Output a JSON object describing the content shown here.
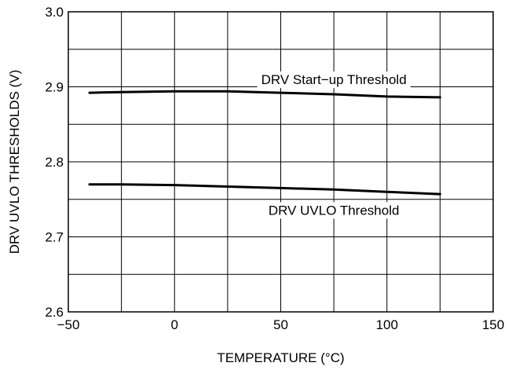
{
  "chart_data": {
    "type": "line",
    "title": "",
    "xlabel": "TEMPERATURE (°C)",
    "ylabel": "DRV UVLO THRESHOLDS (V)",
    "xlim": [
      -50,
      150
    ],
    "ylim": [
      2.6,
      3.0
    ],
    "x_ticks": [
      -50,
      0,
      50,
      100,
      150
    ],
    "x_tick_labels": [
      "−50",
      "0",
      "50",
      "100",
      "150"
    ],
    "y_ticks": [
      2.6,
      2.7,
      2.8,
      2.9,
      3.0
    ],
    "y_tick_labels": [
      "2.6",
      "2.7",
      "2.8",
      "2.9",
      "3.0"
    ],
    "x_minor_step": 25,
    "y_minor_step": 0.05,
    "grid": true,
    "legend": "none",
    "series": [
      {
        "name": "DRV Start−up Threshold",
        "x": [
          -40,
          -25,
          0,
          25,
          50,
          75,
          100,
          125
        ],
        "y": [
          2.892,
          2.893,
          2.894,
          2.894,
          2.892,
          2.89,
          2.887,
          2.886
        ]
      },
      {
        "name": "DRV UVLO Threshold",
        "x": [
          -40,
          -25,
          0,
          25,
          50,
          75,
          100,
          125
        ],
        "y": [
          2.77,
          2.77,
          2.769,
          2.767,
          2.765,
          2.763,
          2.76,
          2.757
        ]
      }
    ]
  }
}
